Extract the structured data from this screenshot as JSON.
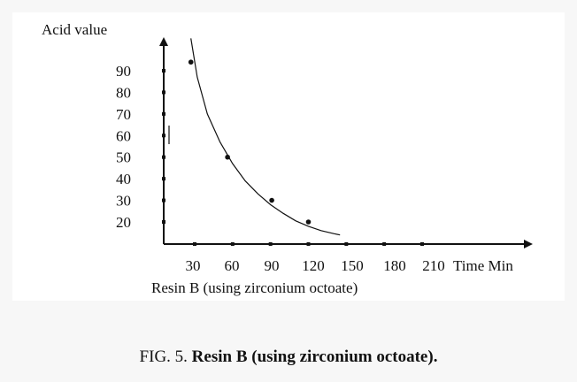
{
  "chart_data": {
    "type": "scatter",
    "ylabel": "Acid value",
    "xlabel": "Time Min",
    "subtitle": "Resin B (using zirconium octoate)",
    "x_ticks": [
      "30",
      "60",
      "90",
      "120",
      "150",
      "180",
      "210"
    ],
    "y_ticks": [
      "20",
      "30",
      "40",
      "50",
      "60",
      "70",
      "80",
      "90"
    ],
    "xlim": [
      10,
      270
    ],
    "ylim": [
      10,
      105
    ],
    "grid": false,
    "legend": "none",
    "series": [
      {
        "x": [
          27,
          56,
          91,
          120
        ],
        "y": [
          94,
          50,
          30,
          20
        ]
      }
    ],
    "fit_curve": {
      "x": [
        27,
        32,
        40,
        50,
        60,
        70,
        80,
        90,
        100,
        110,
        120,
        130,
        140,
        145
      ],
      "y": [
        105,
        87,
        70,
        57,
        47,
        39,
        33,
        28,
        24,
        20.5,
        18,
        16,
        14.6,
        14
      ]
    }
  },
  "caption": {
    "prefix": "FIG. 5.",
    "bold": "Resin B (using zirconium octoate)."
  }
}
